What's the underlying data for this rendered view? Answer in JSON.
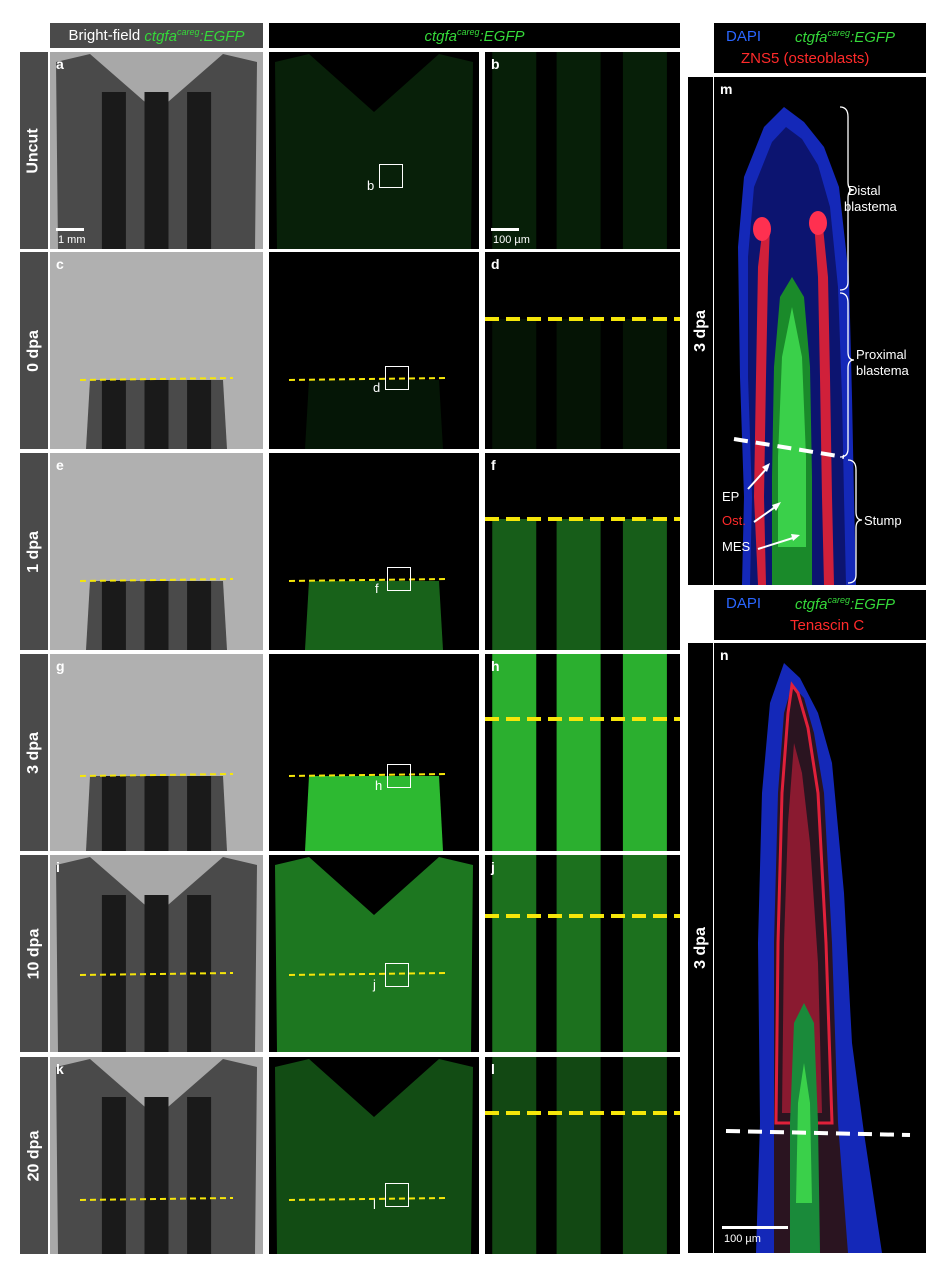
{
  "headers": {
    "col1_prefix": "Bright-field ",
    "gene": "ctgfa",
    "gene_sup": "careg",
    "gene_suffix": ":EGFP"
  },
  "rows": [
    {
      "label": "Uncut",
      "p1": "a",
      "p3": "b",
      "box": "b"
    },
    {
      "label": "0 dpa",
      "p1": "c",
      "p3": "d",
      "box": "d"
    },
    {
      "label": "1 dpa",
      "p1": "e",
      "p3": "f",
      "box": "f"
    },
    {
      "label": "3 dpa",
      "p1": "g",
      "p3": "h",
      "box": "h"
    },
    {
      "label": "10 dpa",
      "p1": "i",
      "p3": "j",
      "box": "j"
    },
    {
      "label": "20 dpa",
      "p1": "k",
      "p3": "l",
      "box": "l"
    }
  ],
  "scale": {
    "bf": "1 mm",
    "zoom": "100 µm",
    "n": "100 µm"
  },
  "right_m": {
    "dapi": "DAPI",
    "red": "ZNS5 (osteoblasts)",
    "letter": "m",
    "side": "3 dpa",
    "distal": [
      "Distal",
      "blastema"
    ],
    "proximal": [
      "Proximal",
      "blastema"
    ],
    "stump": "Stump",
    "ep": "EP",
    "ost": "Ost.",
    "mes": "MES"
  },
  "right_n": {
    "dapi": "DAPI",
    "red": "Tenascin C",
    "letter": "n",
    "side": "3 dpa"
  },
  "colors": {
    "green": "#35d93a",
    "yellow": "#f5e60a",
    "red": "#ff2a2a",
    "blue": "#2a46ff"
  }
}
